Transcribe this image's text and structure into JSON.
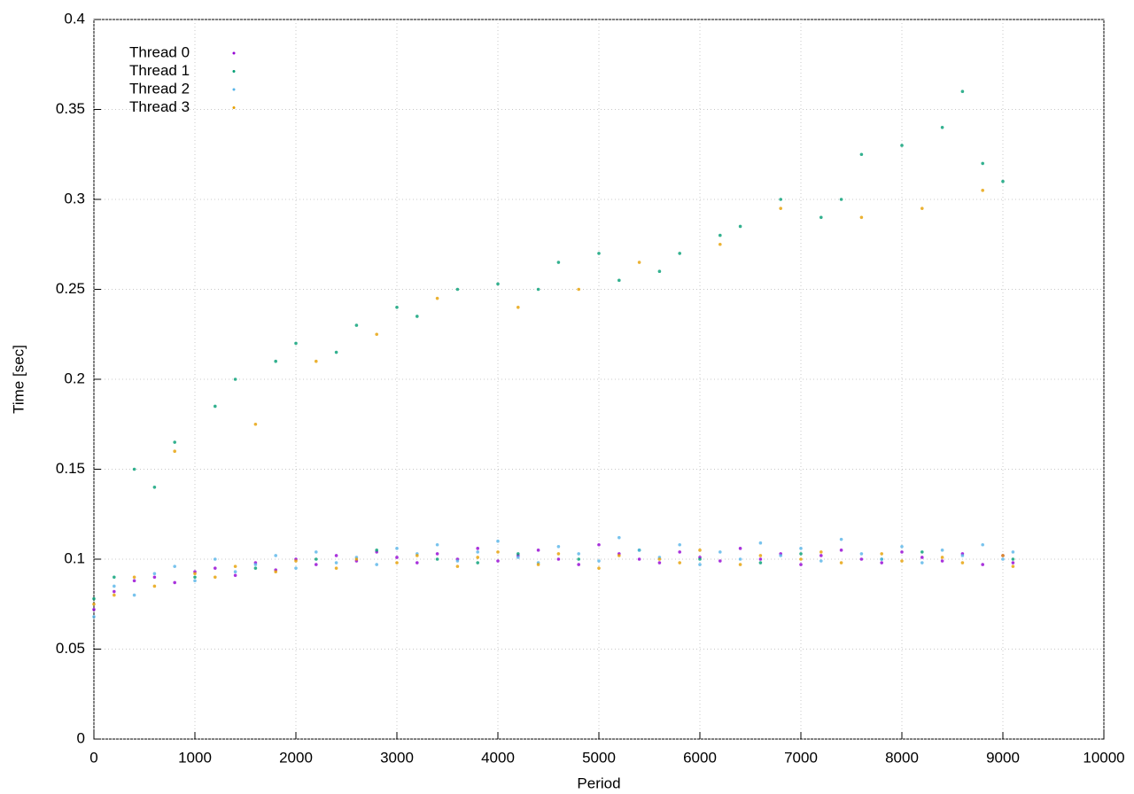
{
  "chart_data": {
    "type": "scatter",
    "x_label": "Period",
    "y_label": "Time [sec]",
    "x": [
      0,
      200,
      400,
      600,
      800,
      1000,
      1200,
      1400,
      1600,
      1800,
      2000,
      2200,
      2400,
      2600,
      2800,
      3000,
      3200,
      3400,
      3600,
      3800,
      4000,
      4200,
      4400,
      4600,
      4800,
      5000,
      5200,
      5400,
      5600,
      5800,
      6000,
      6200,
      6400,
      6600,
      6800,
      7000,
      7200,
      7400,
      7600,
      7800,
      8000,
      8200,
      8400,
      8600,
      8800,
      9000,
      9100
    ],
    "series": [
      {
        "name": "Thread 0",
        "color": "#9400d3",
        "values": [
          0.072,
          0.082,
          0.088,
          0.09,
          0.087,
          0.093,
          0.095,
          0.091,
          0.098,
          0.094,
          0.1,
          0.097,
          0.102,
          0.099,
          0.104,
          0.101,
          0.098,
          0.103,
          0.1,
          0.106,
          0.099,
          0.102,
          0.105,
          0.1,
          0.097,
          0.108,
          0.103,
          0.1,
          0.098,
          0.104,
          0.101,
          0.099,
          0.106,
          0.1,
          0.103,
          0.097,
          0.102,
          0.105,
          0.1,
          0.098,
          0.104,
          0.101,
          0.099,
          0.103,
          0.097,
          0.102,
          0.098
        ]
      },
      {
        "name": "Thread 1",
        "color": "#009e73",
        "values": [
          0.078,
          0.09,
          0.15,
          0.14,
          0.165,
          0.09,
          0.185,
          0.2,
          0.095,
          0.21,
          0.22,
          0.1,
          0.215,
          0.23,
          0.105,
          0.24,
          0.235,
          0.1,
          0.25,
          0.098,
          0.253,
          0.103,
          0.25,
          0.265,
          0.1,
          0.27,
          0.255,
          0.105,
          0.26,
          0.27,
          0.1,
          0.28,
          0.285,
          0.098,
          0.3,
          0.103,
          0.29,
          0.3,
          0.325,
          0.1,
          0.33,
          0.104,
          0.34,
          0.36,
          0.32,
          0.31,
          0.1
        ]
      },
      {
        "name": "Thread 2",
        "color": "#56b4e9",
        "values": [
          0.068,
          0.085,
          0.08,
          0.092,
          0.096,
          0.088,
          0.1,
          0.093,
          0.097,
          0.102,
          0.095,
          0.104,
          0.098,
          0.101,
          0.097,
          0.106,
          0.103,
          0.108,
          0.099,
          0.104,
          0.11,
          0.101,
          0.098,
          0.107,
          0.103,
          0.099,
          0.112,
          0.105,
          0.101,
          0.108,
          0.097,
          0.104,
          0.1,
          0.109,
          0.102,
          0.106,
          0.099,
          0.111,
          0.103,
          0.1,
          0.107,
          0.098,
          0.105,
          0.102,
          0.108,
          0.1,
          0.104
        ]
      },
      {
        "name": "Thread 3",
        "color": "#e69f00",
        "values": [
          0.075,
          0.08,
          0.09,
          0.085,
          0.16,
          0.092,
          0.09,
          0.096,
          0.175,
          0.093,
          0.099,
          0.21,
          0.095,
          0.1,
          0.225,
          0.098,
          0.102,
          0.245,
          0.096,
          0.101,
          0.104,
          0.24,
          0.097,
          0.103,
          0.25,
          0.095,
          0.102,
          0.265,
          0.1,
          0.098,
          0.105,
          0.275,
          0.097,
          0.102,
          0.295,
          0.1,
          0.104,
          0.098,
          0.29,
          0.103,
          0.099,
          0.295,
          0.101,
          0.098,
          0.305,
          0.102,
          0.096
        ]
      }
    ],
    "xlim": [
      0,
      10000
    ],
    "xticks": [
      0,
      1000,
      2000,
      3000,
      4000,
      5000,
      6000,
      7000,
      8000,
      9000,
      10000
    ],
    "ylim": [
      0,
      0.4
    ],
    "yticks": [
      0,
      0.05,
      0.1,
      0.15,
      0.2,
      0.25,
      0.3,
      0.35,
      0.4
    ],
    "grid": true,
    "legend": "top-left"
  }
}
